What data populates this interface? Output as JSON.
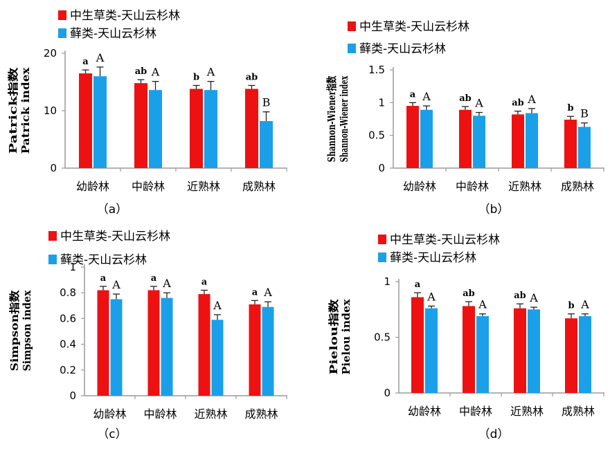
{
  "colors": {
    "series1": "#ee1111",
    "series2": "#1aa0e8",
    "axis": "#9a9a9a",
    "error": "#222222"
  },
  "chart_data": [
    {
      "type": "bar",
      "panel_label": "（a）",
      "categories": [
        "幼龄林",
        "中龄林",
        "近熟林",
        "成熟林"
      ],
      "ylabel": [
        "Patrick指数",
        "Patrick index"
      ],
      "ylim": [
        0,
        20
      ],
      "yticks": [
        0,
        10,
        20
      ],
      "ytick_labels": [
        "0",
        "10",
        "20"
      ],
      "legend_position": "top-left",
      "grid": false,
      "series": [
        {
          "name": "中生草类-天山云杉林",
          "values": [
            16.5,
            14.8,
            13.8,
            13.8
          ],
          "errors": [
            0.6,
            0.6,
            0.6,
            0.6
          ],
          "significance": [
            "a",
            "ab",
            "b",
            "ab"
          ]
        },
        {
          "name": "藓类-天山云杉林",
          "values": [
            16.0,
            13.6,
            13.6,
            8.2
          ],
          "errors": [
            1.6,
            1.5,
            1.5,
            1.6
          ],
          "significance": [
            "A",
            "A",
            "A",
            "B"
          ]
        }
      ]
    },
    {
      "type": "bar",
      "panel_label": "（b）",
      "categories": [
        "幼龄林",
        "中龄林",
        "近熟林",
        "成熟林"
      ],
      "ylabel": [
        "Shannon-Wiener指数",
        "Shannon-Wiener index"
      ],
      "ylim": [
        0,
        1.5
      ],
      "yticks": [
        0,
        0.5,
        1,
        1.5
      ],
      "ytick_labels": [
        "0",
        "0.5",
        "1",
        "1.5"
      ],
      "legend_position": "top",
      "grid": false,
      "series": [
        {
          "name": "中生草类-天山云杉林",
          "values": [
            0.95,
            0.89,
            0.82,
            0.74
          ],
          "errors": [
            0.05,
            0.05,
            0.05,
            0.05
          ],
          "significance": [
            "a",
            "ab",
            "ab",
            "b"
          ]
        },
        {
          "name": "藓类-天山云杉林",
          "values": [
            0.89,
            0.8,
            0.84,
            0.63
          ],
          "errors": [
            0.06,
            0.05,
            0.07,
            0.06
          ],
          "significance": [
            "A",
            "A",
            "A",
            "B"
          ]
        }
      ]
    },
    {
      "type": "bar",
      "panel_label": "（c）",
      "categories": [
        "幼龄林",
        "中龄林",
        "近熟林",
        "成熟林"
      ],
      "ylabel": [
        "Simpson指数",
        "Simpson index"
      ],
      "ylim": [
        0,
        1
      ],
      "yticks": [
        0,
        0.2,
        0.4,
        0.6,
        0.8,
        1
      ],
      "ytick_labels": [
        "0",
        "0.2",
        "0.4",
        "0.6",
        "0.8",
        "1"
      ],
      "legend_position": "top-left",
      "grid": false,
      "series": [
        {
          "name": "中生草类-天山云杉林",
          "values": [
            0.82,
            0.82,
            0.79,
            0.71
          ],
          "errors": [
            0.03,
            0.03,
            0.03,
            0.03
          ],
          "significance": [
            "a",
            "a",
            "a",
            "a"
          ]
        },
        {
          "name": "藓类-天山云杉林",
          "values": [
            0.75,
            0.76,
            0.59,
            0.69
          ],
          "errors": [
            0.04,
            0.04,
            0.04,
            0.04
          ],
          "significance": [
            "A",
            "A",
            "A",
            "A"
          ]
        }
      ]
    },
    {
      "type": "bar",
      "panel_label": "（d）",
      "categories": [
        "幼龄林",
        "中龄林",
        "近熟林",
        "成熟林"
      ],
      "ylabel": [
        "Pielou指数",
        "Pielou index"
      ],
      "ylim": [
        0,
        1
      ],
      "yticks": [
        0,
        0.5,
        1
      ],
      "ytick_labels": [
        "0",
        "0.5",
        "1"
      ],
      "legend_position": "top",
      "grid": false,
      "series": [
        {
          "name": "中生草类-天山云杉林",
          "values": [
            0.86,
            0.78,
            0.76,
            0.67
          ],
          "errors": [
            0.04,
            0.04,
            0.04,
            0.04
          ],
          "significance": [
            "a",
            "ab",
            "ab",
            "b"
          ]
        },
        {
          "name": "藓类-天山云杉林",
          "values": [
            0.76,
            0.69,
            0.75,
            0.69
          ],
          "errors": [
            0.02,
            0.02,
            0.02,
            0.02
          ],
          "significance": [
            "A",
            "A",
            "A",
            "A"
          ]
        }
      ]
    }
  ]
}
